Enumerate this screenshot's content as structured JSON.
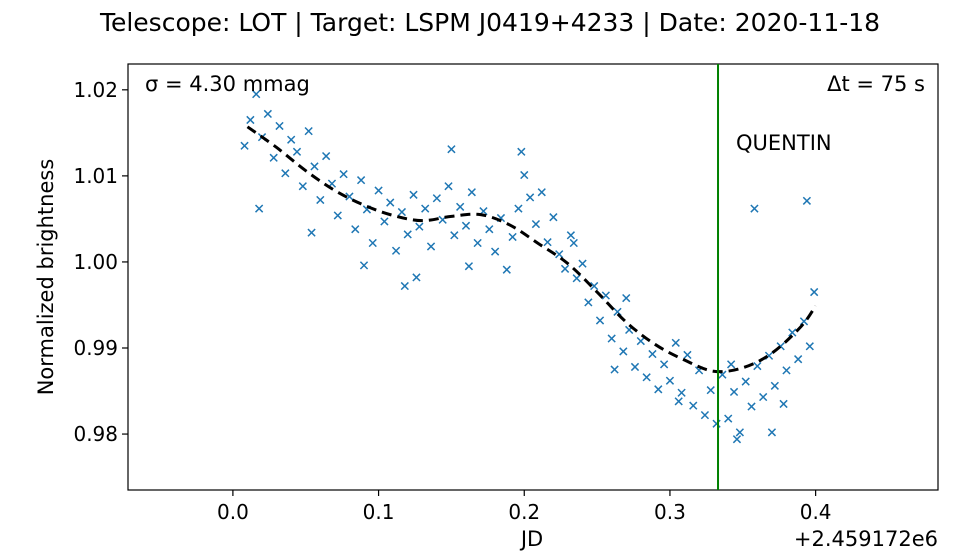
{
  "chart_data": {
    "type": "scatter",
    "title": "Telescope: LOT  |  Target: LSPM J0419+4233  |  Date: 2020-11-18",
    "xlabel": "JD",
    "ylabel": "Normalized brightness",
    "x_offset_label": "+2.459172e6",
    "xlim": [
      -0.072,
      0.484
    ],
    "ylim": [
      0.9735,
      1.023
    ],
    "xticks": [
      0.0,
      0.1,
      0.2,
      0.3,
      0.4
    ],
    "xtick_labels": [
      "0.0",
      "0.1",
      "0.2",
      "0.3",
      "0.4"
    ],
    "yticks": [
      0.98,
      0.99,
      1.0,
      1.01,
      1.02
    ],
    "ytick_labels": [
      "0.98",
      "0.99",
      "1.00",
      "1.01",
      "1.02"
    ],
    "sigma_label": "σ = 4.30 mmag",
    "dt_label": "Δt = 75 s",
    "event_label": "QUENTIN",
    "event_x": 0.333,
    "colors": {
      "points": "#1f77b4",
      "trend": "#000000",
      "event_line": "#008000"
    },
    "series": [
      {
        "name": "measurements",
        "marker": "x",
        "points": [
          [
            0.008,
            1.0135
          ],
          [
            0.012,
            1.0165
          ],
          [
            0.016,
            1.0195
          ],
          [
            0.02,
            1.0145
          ],
          [
            0.024,
            1.0172
          ],
          [
            0.028,
            1.0121
          ],
          [
            0.032,
            1.0158
          ],
          [
            0.036,
            1.0103
          ],
          [
            0.04,
            1.0142
          ],
          [
            0.044,
            1.0128
          ],
          [
            0.048,
            1.0088
          ],
          [
            0.052,
            1.0152
          ],
          [
            0.056,
            1.0111
          ],
          [
            0.06,
            1.0072
          ],
          [
            0.064,
            1.0123
          ],
          [
            0.068,
            1.0091
          ],
          [
            0.072,
            1.0054
          ],
          [
            0.076,
            1.0102
          ],
          [
            0.08,
            1.0076
          ],
          [
            0.084,
            1.0038
          ],
          [
            0.088,
            1.0095
          ],
          [
            0.092,
            1.0061
          ],
          [
            0.096,
            1.0022
          ],
          [
            0.1,
            1.0083
          ],
          [
            0.104,
            1.0047
          ],
          [
            0.108,
            1.0069
          ],
          [
            0.112,
            1.0013
          ],
          [
            0.116,
            1.0058
          ],
          [
            0.12,
            1.0032
          ],
          [
            0.124,
            1.0078
          ],
          [
            0.128,
            1.0041
          ],
          [
            0.132,
            1.0062
          ],
          [
            0.136,
            1.0018
          ],
          [
            0.14,
            1.0074
          ],
          [
            0.144,
            1.0049
          ],
          [
            0.148,
            1.0088
          ],
          [
            0.152,
            1.0031
          ],
          [
            0.156,
            1.0064
          ],
          [
            0.16,
            1.0042
          ],
          [
            0.164,
            1.0081
          ],
          [
            0.168,
            1.0022
          ],
          [
            0.172,
            1.0059
          ],
          [
            0.176,
            1.0038
          ],
          [
            0.18,
            1.0012
          ],
          [
            0.184,
            1.0051
          ],
          [
            0.188,
            0.9991
          ],
          [
            0.192,
            1.0029
          ],
          [
            0.196,
            1.0062
          ],
          [
            0.2,
            1.0101
          ],
          [
            0.204,
            1.0075
          ],
          [
            0.208,
            1.0044
          ],
          [
            0.212,
            1.0081
          ],
          [
            0.216,
            1.0023
          ],
          [
            0.22,
            1.0052
          ],
          [
            0.224,
            1.0009
          ],
          [
            0.228,
            0.9992
          ],
          [
            0.232,
            1.0031
          ],
          [
            0.236,
            0.9981
          ],
          [
            0.24,
            0.9998
          ],
          [
            0.244,
            0.9953
          ],
          [
            0.248,
            0.9972
          ],
          [
            0.252,
            0.9932
          ],
          [
            0.256,
            0.9961
          ],
          [
            0.26,
            0.9911
          ],
          [
            0.264,
            0.9942
          ],
          [
            0.268,
            0.9896
          ],
          [
            0.272,
            0.9921
          ],
          [
            0.276,
            0.9878
          ],
          [
            0.28,
            0.9908
          ],
          [
            0.284,
            0.9866
          ],
          [
            0.288,
            0.9893
          ],
          [
            0.292,
            0.9852
          ],
          [
            0.296,
            0.9881
          ],
          [
            0.3,
            0.9862
          ],
          [
            0.304,
            0.9906
          ],
          [
            0.308,
            0.9848
          ],
          [
            0.312,
            0.9892
          ],
          [
            0.316,
            0.9833
          ],
          [
            0.32,
            0.9874
          ],
          [
            0.324,
            0.9822
          ],
          [
            0.328,
            0.9851
          ],
          [
            0.332,
            0.9812
          ],
          [
            0.336,
            0.9869
          ],
          [
            0.34,
            0.9818
          ],
          [
            0.344,
            0.9849
          ],
          [
            0.348,
            0.9802
          ],
          [
            0.352,
            0.9861
          ],
          [
            0.356,
            0.9832
          ],
          [
            0.36,
            0.9879
          ],
          [
            0.364,
            0.9843
          ],
          [
            0.368,
            0.9891
          ],
          [
            0.372,
            0.9856
          ],
          [
            0.376,
            0.9902
          ],
          [
            0.38,
            0.9874
          ],
          [
            0.384,
            0.9918
          ],
          [
            0.388,
            0.9887
          ],
          [
            0.392,
            0.9931
          ],
          [
            0.396,
            0.9902
          ],
          [
            0.399,
            0.9965
          ],
          [
            0.018,
            1.0062
          ],
          [
            0.054,
            1.0034
          ],
          [
            0.09,
            0.9996
          ],
          [
            0.126,
            0.9982
          ],
          [
            0.162,
            0.9995
          ],
          [
            0.198,
            1.0128
          ],
          [
            0.234,
            1.0022
          ],
          [
            0.27,
            0.9958
          ],
          [
            0.306,
            0.9838
          ],
          [
            0.342,
            0.9881
          ],
          [
            0.378,
            0.9835
          ],
          [
            0.394,
            1.0071
          ],
          [
            0.346,
            0.9794
          ],
          [
            0.37,
            0.9802
          ],
          [
            0.15,
            1.0131
          ],
          [
            0.118,
            0.9972
          ],
          [
            0.262,
            0.9875
          ],
          [
            0.358,
            1.0062
          ]
        ]
      },
      {
        "name": "smoothed trend",
        "marker": "dashed-line",
        "points": [
          [
            0.01,
            1.0157
          ],
          [
            0.03,
            1.0133
          ],
          [
            0.05,
            1.0106
          ],
          [
            0.07,
            1.0083
          ],
          [
            0.09,
            1.0066
          ],
          [
            0.11,
            1.0054
          ],
          [
            0.13,
            1.0048
          ],
          [
            0.15,
            1.0053
          ],
          [
            0.17,
            1.0055
          ],
          [
            0.19,
            1.0043
          ],
          [
            0.21,
            1.0021
          ],
          [
            0.23,
            0.9998
          ],
          [
            0.25,
            0.9965
          ],
          [
            0.27,
            0.993
          ],
          [
            0.29,
            0.9904
          ],
          [
            0.31,
            0.9886
          ],
          [
            0.33,
            0.9873
          ],
          [
            0.35,
            0.9877
          ],
          [
            0.37,
            0.9894
          ],
          [
            0.39,
            0.9925
          ],
          [
            0.4,
            0.9949
          ]
        ]
      }
    ]
  }
}
